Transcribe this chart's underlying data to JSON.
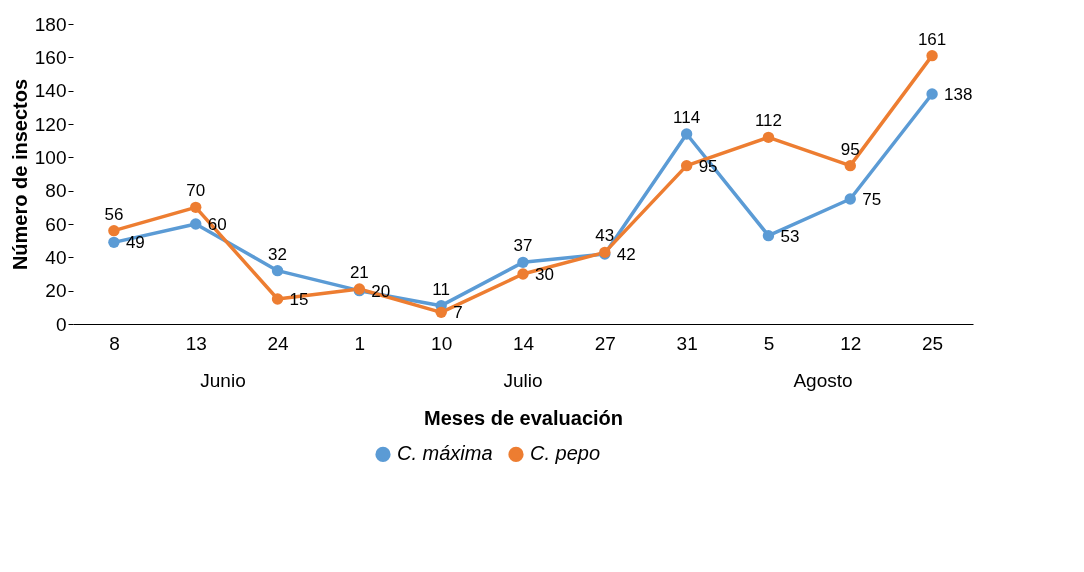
{
  "chart_data": {
    "type": "line",
    "xlabel": "Meses de evaluación",
    "ylabel": "Número de insectos",
    "categories": [
      "8",
      "13",
      "24",
      "1",
      "10",
      "14",
      "27",
      "31",
      "5",
      "12",
      "25"
    ],
    "series": [
      {
        "name": "C. máxima",
        "color": "#5b9bd5",
        "values": [
          49,
          60,
          32,
          20,
          11,
          37,
          42,
          114,
          53,
          75,
          138
        ]
      },
      {
        "name": "C. pepo",
        "color": "#ed7d31",
        "values": [
          56,
          70,
          15,
          21,
          7,
          30,
          43,
          95,
          112,
          95,
          161
        ]
      }
    ],
    "ylim": [
      0,
      180
    ],
    "yticks": [
      0,
      20,
      40,
      60,
      80,
      100,
      120,
      140,
      160,
      180
    ],
    "annotations": [
      "Junio",
      "Julio",
      "Agosto"
    ],
    "data_labels": true,
    "grid": false,
    "legend": "bottom",
    "marker": "circle",
    "line_style": "solid"
  }
}
